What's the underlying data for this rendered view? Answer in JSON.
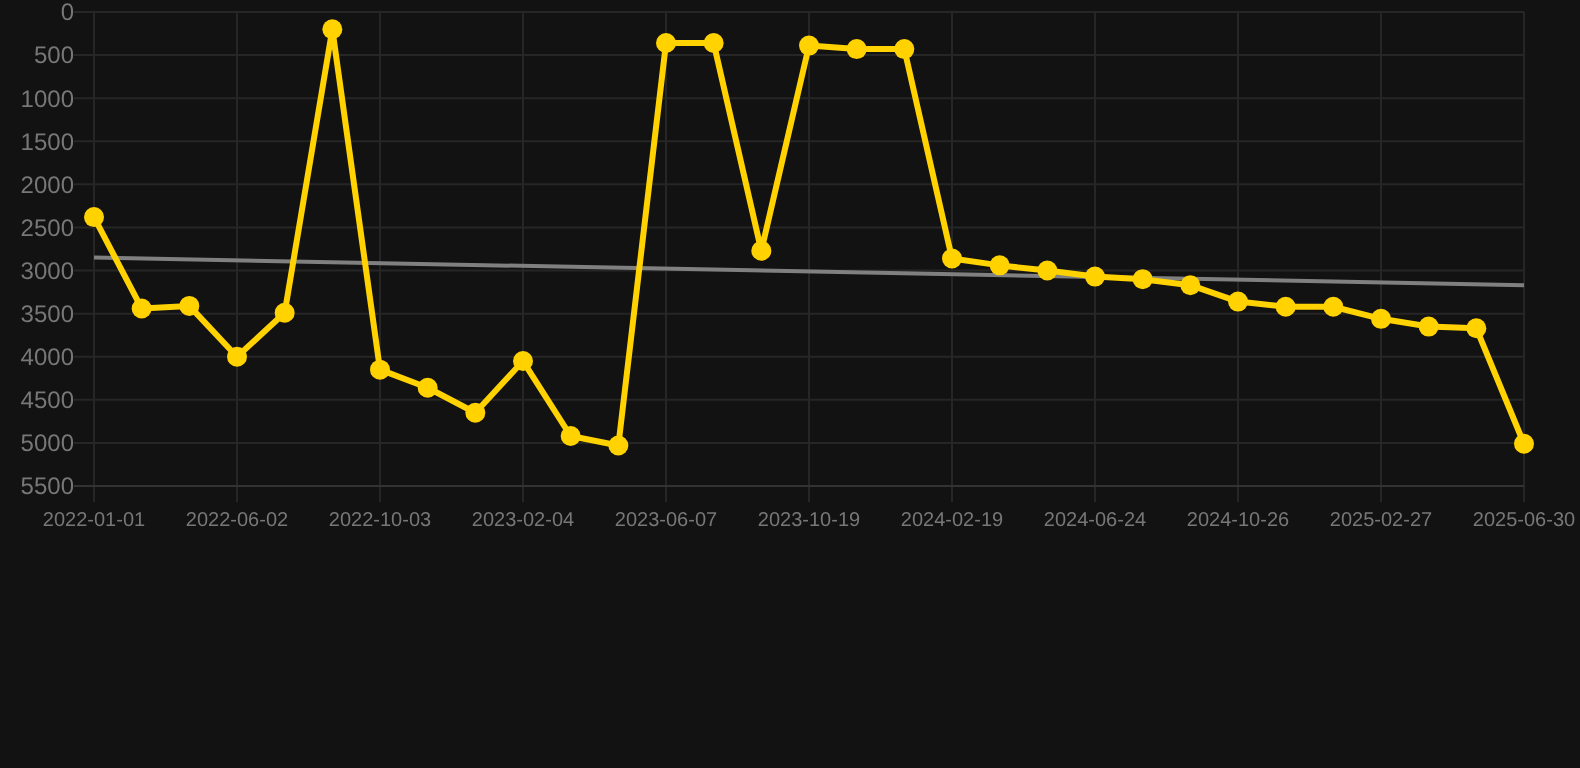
{
  "chart_data": {
    "type": "line",
    "categories": [
      "2022-01-01",
      null,
      null,
      "2022-06-02",
      null,
      null,
      "2022-10-03",
      null,
      null,
      "2023-02-04",
      null,
      null,
      "2023-06-07",
      null,
      null,
      "2023-10-19",
      null,
      null,
      "2024-02-19",
      null,
      null,
      "2024-06-24",
      null,
      null,
      "2024-10-26",
      null,
      null,
      "2025-02-27",
      null,
      null,
      "2025-06-30"
    ],
    "series": [
      {
        "color": "#ffd200",
        "marker": "circle",
        "values": [
          2380,
          3440,
          3410,
          4000,
          3490,
          200,
          4150,
          4360,
          4650,
          4050,
          4920,
          5030,
          360,
          360,
          2770,
          390,
          430,
          430,
          2860,
          2940,
          3000,
          3070,
          3100,
          3170,
          3360,
          3420,
          3420,
          3560,
          3650,
          3670,
          5010
        ]
      },
      {
        "type": "line",
        "color": "#808080",
        "marker": "none",
        "values": [
          2850,
          null,
          null,
          null,
          null,
          null,
          null,
          null,
          null,
          null,
          null,
          null,
          null,
          null,
          null,
          null,
          null,
          null,
          null,
          null,
          null,
          null,
          null,
          null,
          null,
          null,
          null,
          null,
          null,
          null,
          3170
        ]
      }
    ],
    "ylim": [
      5500,
      0
    ],
    "yticks": [
      0,
      500,
      1000,
      1500,
      2000,
      2500,
      3000,
      3500,
      4000,
      4500,
      5000,
      5500
    ],
    "grid": true
  }
}
